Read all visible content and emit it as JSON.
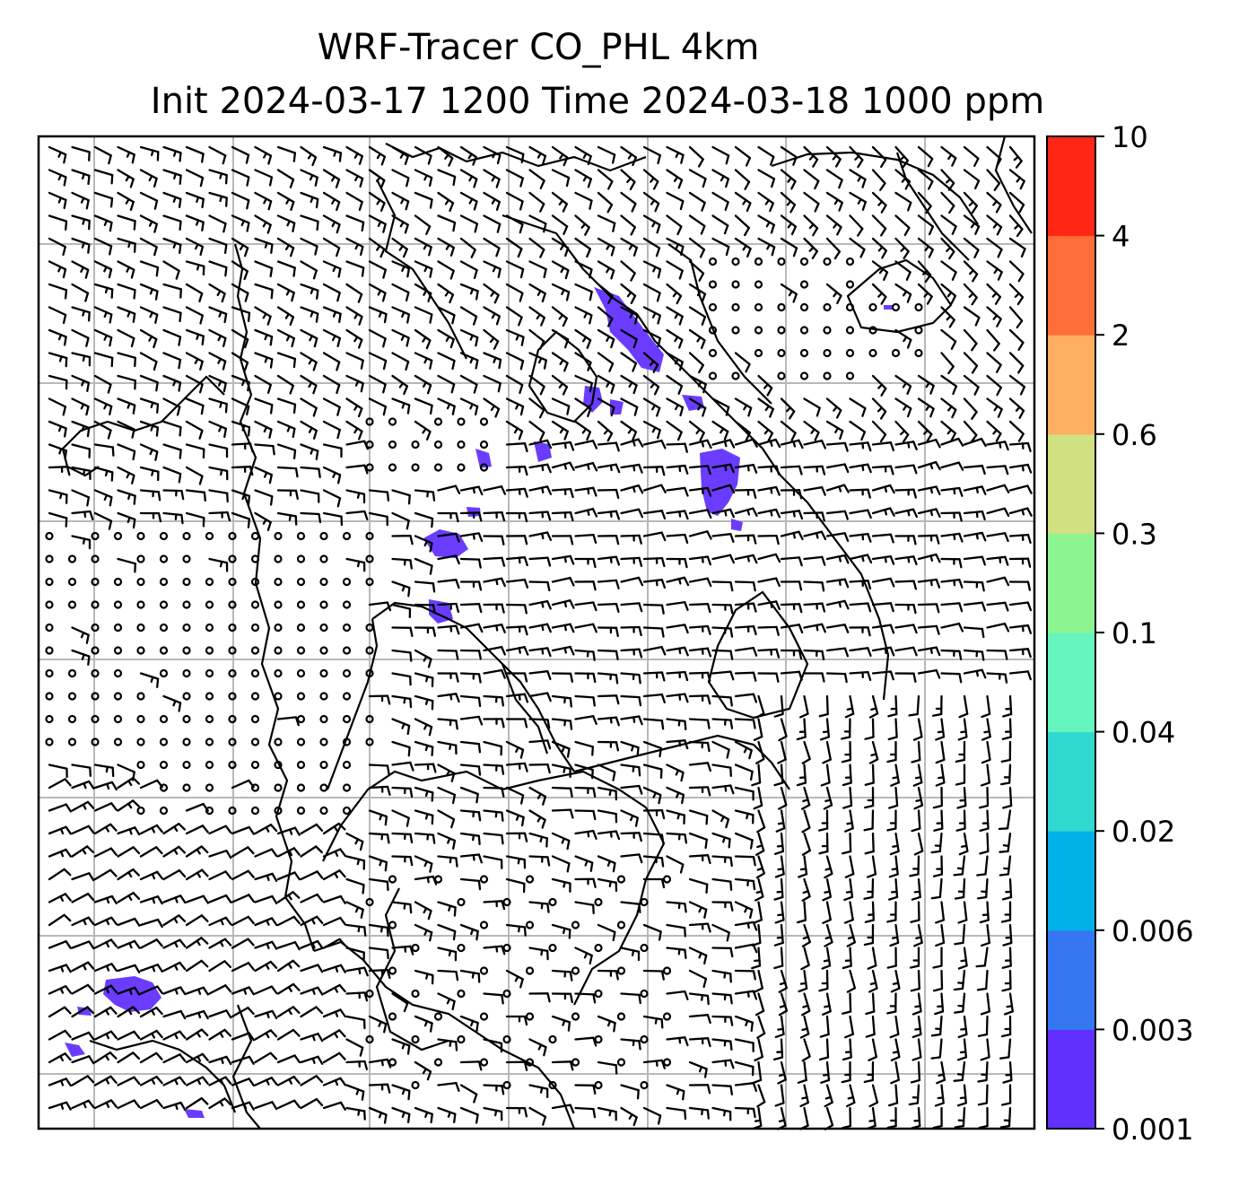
{
  "title": {
    "line1": "WRF-Tracer CO_PHL 4km",
    "line2": "Init 2024-03-17 1200 Time 2024-03-18 1000 ppm"
  },
  "colorbar": {
    "levels": [
      "0.001",
      "0.003",
      "0.006",
      "0.02",
      "0.04",
      "0.1",
      "0.3",
      "0.6",
      "2",
      "4",
      "10"
    ],
    "colors": [
      "#6130ff",
      "#3477f0",
      "#00b0e6",
      "#2fd9d0",
      "#66f5bf",
      "#8df58f",
      "#d1e081",
      "#feae61",
      "#ff6e38",
      "#ff2615"
    ]
  },
  "plume_color": "#6a3cff"
}
